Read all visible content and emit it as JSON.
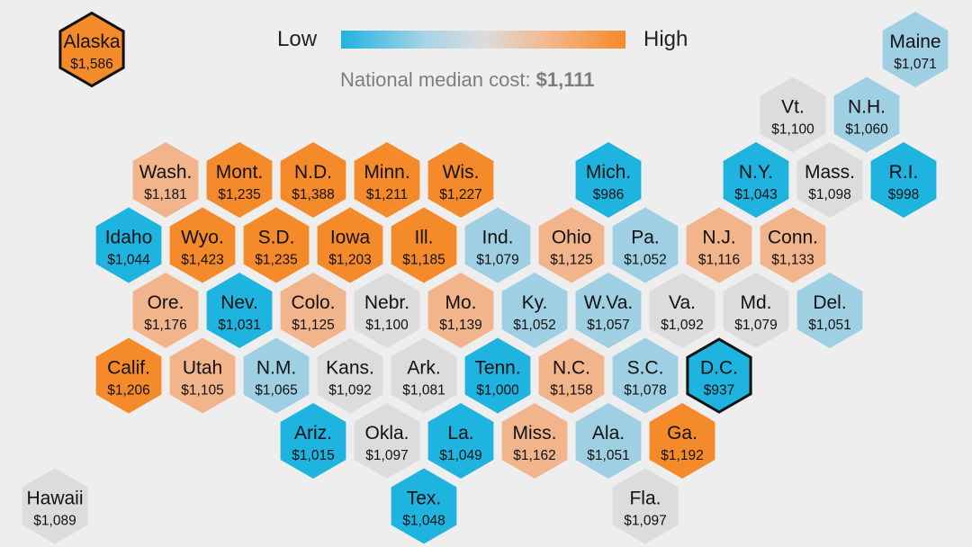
{
  "legend": {
    "low_label": "Low",
    "high_label": "High",
    "median_prefix": "National median cost: ",
    "median_value": "$1,111"
  },
  "colors": {
    "low": "#1fb3df",
    "mid_low": "#9fcfe2",
    "neutral": "#dcdcdc",
    "mid_high": "#f2b48a",
    "high": "#f58a2a",
    "highlight_outline": "#111111"
  },
  "states": [
    {
      "abbr": "Alaska",
      "cost": "$1,586",
      "color": "high",
      "row": 0,
      "col": 0,
      "highlight": true
    },
    {
      "abbr": "Maine",
      "cost": "$1,071",
      "color": "mid_low",
      "row": 0,
      "col": 12
    },
    {
      "abbr": "Vt.",
      "cost": "$1,100",
      "color": "neutral",
      "row": 1,
      "col": 10
    },
    {
      "abbr": "N.H.",
      "cost": "$1,060",
      "color": "mid_low",
      "row": 1,
      "col": 11
    },
    {
      "abbr": "Wash.",
      "cost": "$1,181",
      "color": "mid_high",
      "row": 2,
      "col": 1
    },
    {
      "abbr": "Mont.",
      "cost": "$1,235",
      "color": "high",
      "row": 2,
      "col": 2
    },
    {
      "abbr": "N.D.",
      "cost": "$1,388",
      "color": "high",
      "row": 2,
      "col": 3
    },
    {
      "abbr": "Minn.",
      "cost": "$1,211",
      "color": "high",
      "row": 2,
      "col": 4
    },
    {
      "abbr": "Wis.",
      "cost": "$1,227",
      "color": "high",
      "row": 2,
      "col": 5
    },
    {
      "abbr": "Mich.",
      "cost": "$986",
      "color": "low",
      "row": 2,
      "col": 7
    },
    {
      "abbr": "N.Y.",
      "cost": "$1,043",
      "color": "low",
      "row": 2,
      "col": 9
    },
    {
      "abbr": "Mass.",
      "cost": "$1,098",
      "color": "neutral",
      "row": 2,
      "col": 10
    },
    {
      "abbr": "R.I.",
      "cost": "$998",
      "color": "low",
      "row": 2,
      "col": 11
    },
    {
      "abbr": "Idaho",
      "cost": "$1,044",
      "color": "low",
      "row": 3,
      "col": 1
    },
    {
      "abbr": "Wyo.",
      "cost": "$1,423",
      "color": "high",
      "row": 3,
      "col": 2
    },
    {
      "abbr": "S.D.",
      "cost": "$1,235",
      "color": "high",
      "row": 3,
      "col": 3
    },
    {
      "abbr": "Iowa",
      "cost": "$1,203",
      "color": "high",
      "row": 3,
      "col": 4
    },
    {
      "abbr": "Ill.",
      "cost": "$1,185",
      "color": "high",
      "row": 3,
      "col": 5
    },
    {
      "abbr": "Ind.",
      "cost": "$1,079",
      "color": "mid_low",
      "row": 3,
      "col": 6
    },
    {
      "abbr": "Ohio",
      "cost": "$1,125",
      "color": "mid_high",
      "row": 3,
      "col": 7
    },
    {
      "abbr": "Pa.",
      "cost": "$1,052",
      "color": "mid_low",
      "row": 3,
      "col": 8
    },
    {
      "abbr": "N.J.",
      "cost": "$1,116",
      "color": "mid_high",
      "row": 3,
      "col": 9
    },
    {
      "abbr": "Conn.",
      "cost": "$1,133",
      "color": "mid_high",
      "row": 3,
      "col": 10
    },
    {
      "abbr": "Ore.",
      "cost": "$1,176",
      "color": "mid_high",
      "row": 4,
      "col": 1
    },
    {
      "abbr": "Nev.",
      "cost": "$1,031",
      "color": "low",
      "row": 4,
      "col": 2
    },
    {
      "abbr": "Colo.",
      "cost": "$1,125",
      "color": "mid_high",
      "row": 4,
      "col": 3
    },
    {
      "abbr": "Nebr.",
      "cost": "$1,100",
      "color": "neutral",
      "row": 4,
      "col": 4
    },
    {
      "abbr": "Mo.",
      "cost": "$1,139",
      "color": "mid_high",
      "row": 4,
      "col": 5
    },
    {
      "abbr": "Ky.",
      "cost": "$1,052",
      "color": "mid_low",
      "row": 4,
      "col": 6
    },
    {
      "abbr": "W.Va.",
      "cost": "$1,057",
      "color": "mid_low",
      "row": 4,
      "col": 7
    },
    {
      "abbr": "Va.",
      "cost": "$1,092",
      "color": "neutral",
      "row": 4,
      "col": 8
    },
    {
      "abbr": "Md.",
      "cost": "$1,079",
      "color": "neutral",
      "row": 4,
      "col": 9
    },
    {
      "abbr": "Del.",
      "cost": "$1,051",
      "color": "mid_low",
      "row": 4,
      "col": 10
    },
    {
      "abbr": "Calif.",
      "cost": "$1,206",
      "color": "high",
      "row": 5,
      "col": 1
    },
    {
      "abbr": "Utah",
      "cost": "$1,105",
      "color": "mid_high",
      "row": 5,
      "col": 2
    },
    {
      "abbr": "N.M.",
      "cost": "$1,065",
      "color": "mid_low",
      "row": 5,
      "col": 3
    },
    {
      "abbr": "Kans.",
      "cost": "$1,092",
      "color": "neutral",
      "row": 5,
      "col": 4
    },
    {
      "abbr": "Ark.",
      "cost": "$1,081",
      "color": "neutral",
      "row": 5,
      "col": 5
    },
    {
      "abbr": "Tenn.",
      "cost": "$1,000",
      "color": "low",
      "row": 5,
      "col": 6
    },
    {
      "abbr": "N.C.",
      "cost": "$1,158",
      "color": "mid_high",
      "row": 5,
      "col": 7
    },
    {
      "abbr": "S.C.",
      "cost": "$1,078",
      "color": "mid_low",
      "row": 5,
      "col": 8
    },
    {
      "abbr": "D.C.",
      "cost": "$937",
      "color": "low",
      "row": 5,
      "col": 9,
      "highlight": true
    },
    {
      "abbr": "Ariz.",
      "cost": "$1,015",
      "color": "low",
      "row": 6,
      "col": 3
    },
    {
      "abbr": "Okla.",
      "cost": "$1,097",
      "color": "neutral",
      "row": 6,
      "col": 4
    },
    {
      "abbr": "La.",
      "cost": "$1,049",
      "color": "low",
      "row": 6,
      "col": 5
    },
    {
      "abbr": "Miss.",
      "cost": "$1,162",
      "color": "mid_high",
      "row": 6,
      "col": 6
    },
    {
      "abbr": "Ala.",
      "cost": "$1,051",
      "color": "mid_low",
      "row": 6,
      "col": 7
    },
    {
      "abbr": "Ga.",
      "cost": "$1,192",
      "color": "high",
      "row": 6,
      "col": 8
    },
    {
      "abbr": "Hawaii",
      "cost": "$1,089",
      "color": "neutral",
      "row": 7,
      "col": 0
    },
    {
      "abbr": "Tex.",
      "cost": "$1,048",
      "color": "low",
      "row": 7,
      "col": 5
    },
    {
      "abbr": "Fla.",
      "cost": "$1,097",
      "color": "neutral",
      "row": 7,
      "col": 8
    }
  ]
}
